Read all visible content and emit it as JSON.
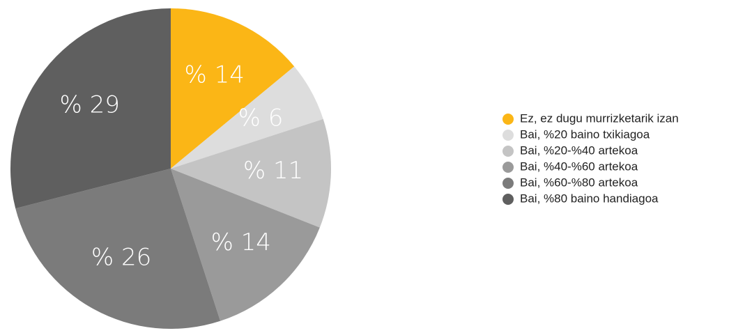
{
  "chart_data": {
    "type": "pie",
    "categories": [
      "Ez, ez dugu murrizketarik izan",
      "Bai, %20 baino txikiagoa",
      "Bai, %20-%40 artekoa",
      "Bai, %40-%60 artekoa",
      "Bai, %60-%80 artekoa",
      "Bai, %80 baino handiagoa"
    ],
    "values": [
      14,
      6,
      11,
      14,
      26,
      29
    ],
    "value_labels": [
      "% 14",
      "% 6",
      "% 11",
      "% 14",
      "% 26",
      "% 29"
    ],
    "colors": [
      "#fbb616",
      "#dddddd",
      "#c4c4c4",
      "#9a9a9a",
      "#7b7b7b",
      "#5f5f5f"
    ]
  }
}
